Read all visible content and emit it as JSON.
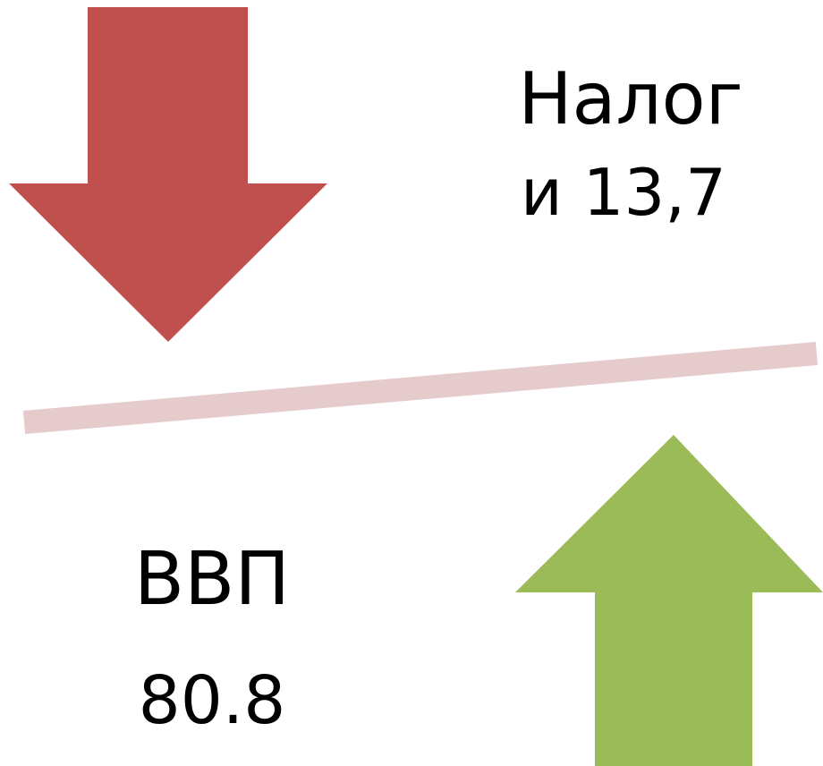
{
  "top_label": {
    "line1": "Налог",
    "line2": "и 13,7"
  },
  "bottom_label": {
    "name": "ВВП",
    "value": "80.8"
  }
}
